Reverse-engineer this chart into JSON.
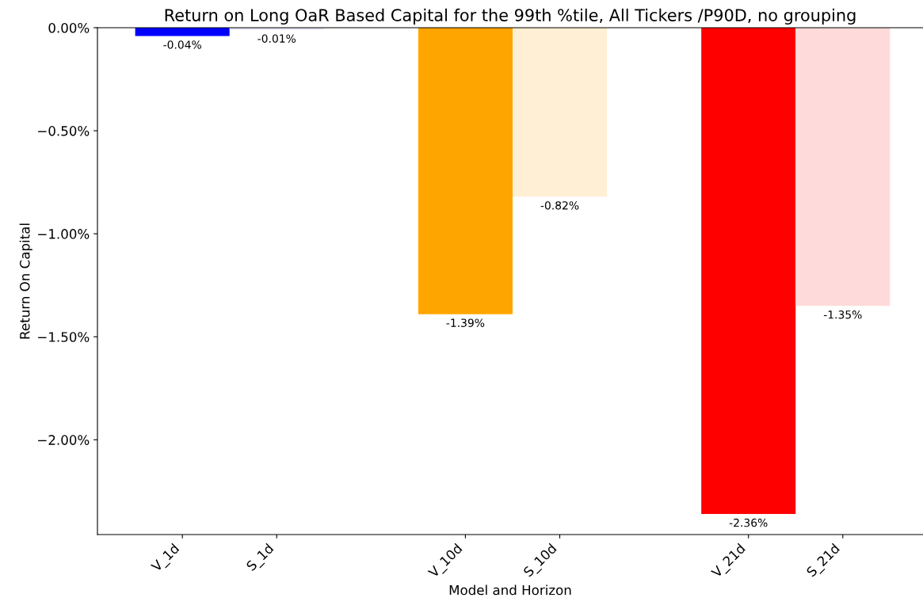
{
  "chart_data": {
    "type": "bar",
    "title": "Return on Long OaR Based Capital for the 99th %tile, All Tickers /P90D, no grouping",
    "xlabel": "Model and Horizon",
    "ylabel": "Return On Capital",
    "categories": [
      "V_1d",
      "S_1d",
      null,
      "V_10d",
      "S_10d",
      null,
      "V_21d",
      "S_21d"
    ],
    "values": [
      -0.04,
      -0.01,
      null,
      -1.39,
      -0.82,
      null,
      -2.36,
      -1.35
    ],
    "colors": [
      "#0000ff",
      "#e6e6fa",
      "#ffffff",
      "#ffa500",
      "#ffefd5",
      "#ffffff",
      "#ff0000",
      "#ffdada"
    ],
    "value_labels": [
      "-0.04%",
      "-0.01%",
      null,
      "-1.39%",
      "-0.82%",
      null,
      "-2.36%",
      "-1.35%"
    ],
    "ylim": [
      -2.46,
      0
    ],
    "yticks": [
      {
        "value": 0,
        "label": "0.00%"
      },
      {
        "value": -0.5,
        "label": "−0.50%"
      },
      {
        "value": -1,
        "label": "−1.00%"
      },
      {
        "value": -1.5,
        "label": "−1.50%"
      },
      {
        "value": -2,
        "label": "−2.00%"
      }
    ],
    "grid": false,
    "legend": false
  }
}
